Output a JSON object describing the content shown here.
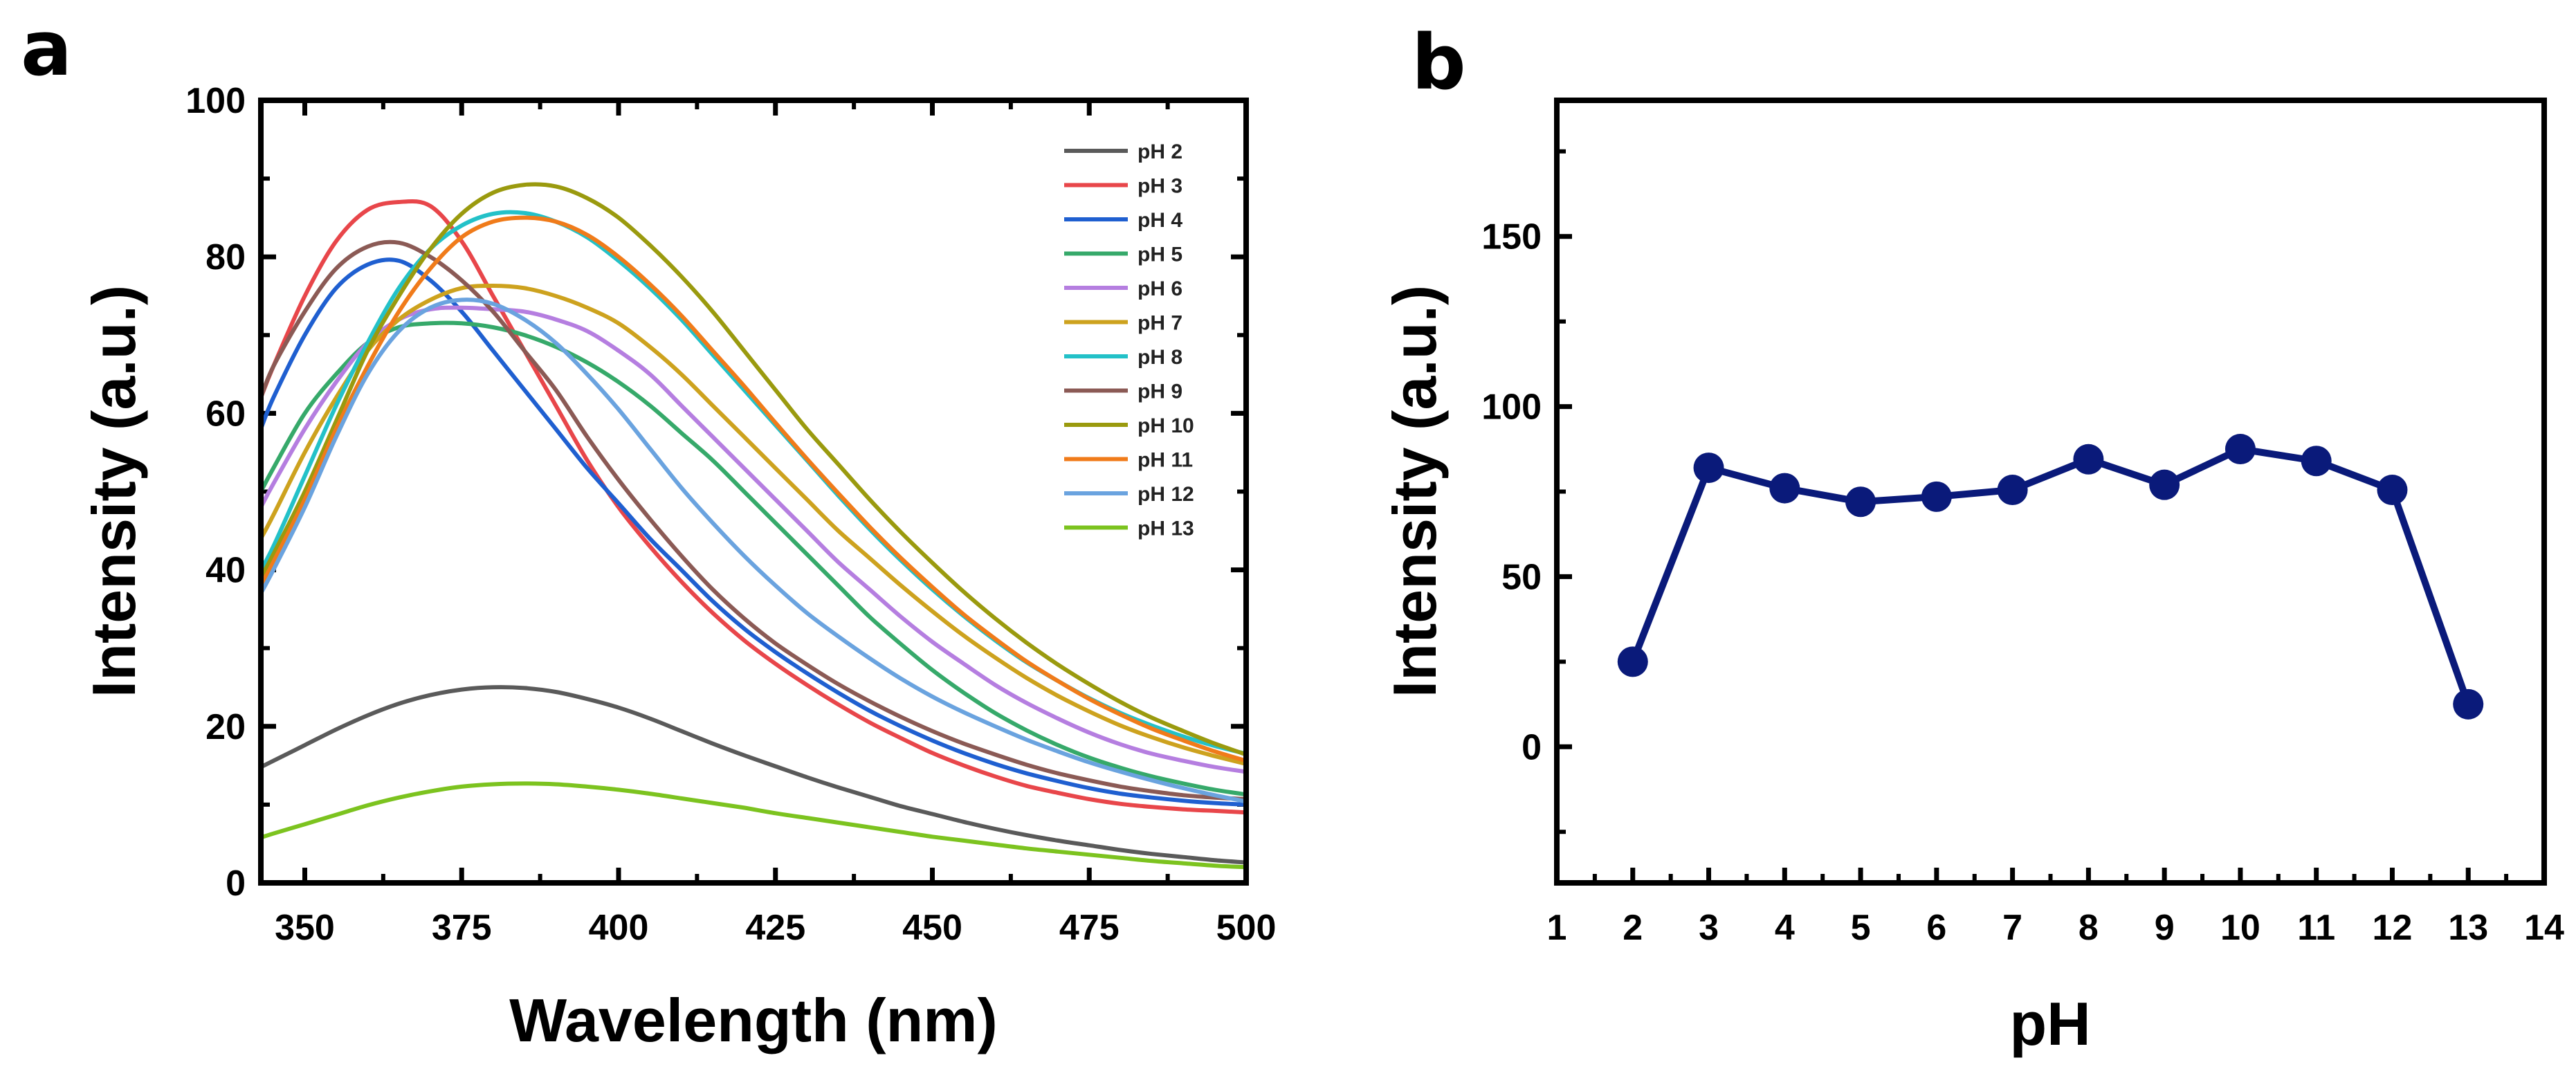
{
  "panels": {
    "a": "a",
    "b": "b"
  },
  "colors": {
    "axis": "#000000",
    "marker": "#0a1a7a"
  },
  "chart_data": [
    {
      "panel": "a",
      "type": "line",
      "xlabel": "Wavelength (nm)",
      "ylabel": "Intensity (a.u.)",
      "xlim": [
        343,
        500
      ],
      "ylim": [
        0,
        100
      ],
      "xticks": [
        350,
        375,
        400,
        425,
        450,
        475,
        500
      ],
      "yticks": [
        0,
        20,
        40,
        60,
        80,
        100
      ],
      "legend_position": "top-right",
      "x": [
        343,
        345,
        350,
        355,
        360,
        365,
        370,
        375,
        380,
        385,
        390,
        395,
        400,
        405,
        410,
        415,
        420,
        425,
        430,
        435,
        440,
        445,
        450,
        455,
        460,
        465,
        470,
        475,
        480,
        485,
        490,
        495,
        500
      ],
      "series": [
        {
          "name": "pH 2",
          "color": "#5a5a5a",
          "values": [
            14.8,
            15.6,
            17.6,
            19.6,
            21.4,
            22.9,
            24.0,
            24.7,
            25.0,
            24.9,
            24.4,
            23.5,
            22.4,
            21.0,
            19.4,
            17.8,
            16.3,
            14.9,
            13.5,
            12.2,
            11.0,
            9.8,
            8.8,
            7.8,
            6.9,
            6.1,
            5.4,
            4.8,
            4.2,
            3.7,
            3.3,
            2.9,
            2.6
          ]
        },
        {
          "name": "pH 3",
          "color": "#e8464a",
          "values": [
            62,
            66,
            75,
            82,
            86,
            87,
            86.5,
            82,
            75,
            68,
            61,
            54,
            48,
            43,
            38.5,
            34.5,
            31,
            28,
            25.3,
            22.8,
            20.5,
            18.5,
            16.6,
            15.0,
            13.6,
            12.4,
            11.5,
            10.7,
            10.1,
            9.7,
            9.4,
            9.2,
            9.0
          ]
        },
        {
          "name": "pH 4",
          "color": "#1f5fd0",
          "values": [
            58,
            62,
            70,
            76,
            79,
            79.5,
            77,
            73,
            68,
            63,
            58,
            53,
            48.5,
            44,
            40,
            36,
            32.5,
            29.5,
            26.8,
            24.3,
            22,
            20,
            18.2,
            16.6,
            15.2,
            14.0,
            13.0,
            12.1,
            11.4,
            10.9,
            10.5,
            10.2,
            10.0
          ]
        },
        {
          "name": "pH 5",
          "color": "#36a96a",
          "values": [
            50,
            53,
            60,
            65,
            69,
            71,
            71.5,
            71.5,
            71,
            70,
            68.5,
            66.5,
            64,
            61,
            57.5,
            54,
            50,
            46,
            42,
            38,
            34,
            30.5,
            27.2,
            24.3,
            21.7,
            19.5,
            17.6,
            16.0,
            14.7,
            13.6,
            12.7,
            11.9,
            11.3
          ]
        },
        {
          "name": "pH 6",
          "color": "#b57ee0",
          "values": [
            48,
            51,
            58,
            64,
            69,
            72,
            73.3,
            73.5,
            73.3,
            73,
            72,
            70.5,
            68,
            65,
            61,
            57,
            53,
            49,
            45,
            41,
            37.5,
            34,
            30.8,
            28,
            25.3,
            23,
            21,
            19.2,
            17.7,
            16.5,
            15.6,
            14.8,
            14.2
          ]
        },
        {
          "name": "pH 7",
          "color": "#cda21e",
          "values": [
            44,
            47,
            55,
            62,
            68,
            72,
            74.5,
            76,
            76.3,
            76,
            75,
            73.5,
            71.5,
            68.5,
            65,
            61,
            57,
            53,
            49,
            45,
            41.5,
            38,
            34.7,
            31.6,
            28.8,
            26.2,
            23.9,
            21.9,
            20.1,
            18.6,
            17.3,
            16.2,
            15.2
          ]
        },
        {
          "name": "pH 8",
          "color": "#23c1c8",
          "values": [
            40,
            43,
            52,
            61,
            69,
            76,
            81,
            84,
            85.5,
            85.6,
            84.5,
            82.5,
            79.5,
            76,
            72,
            67.5,
            63,
            58.5,
            54,
            49.5,
            45.2,
            41.2,
            37.5,
            34.1,
            31,
            28.2,
            25.8,
            23.6,
            21.7,
            20.1,
            18.7,
            17.5,
            16.5
          ]
        },
        {
          "name": "pH 9",
          "color": "#8b5a55",
          "values": [
            62,
            66,
            73,
            78.5,
            81.3,
            81.8,
            80,
            77,
            73,
            68,
            63,
            57,
            51.5,
            46.5,
            41.8,
            37.5,
            33.8,
            30.6,
            27.9,
            25.4,
            23.2,
            21.2,
            19.4,
            17.8,
            16.4,
            15.1,
            14,
            13.1,
            12.3,
            11.7,
            11.2,
            10.9,
            10.7
          ]
        },
        {
          "name": "pH 10",
          "color": "#9a9a0e",
          "values": [
            39,
            42,
            50,
            59,
            68,
            75,
            81,
            85.5,
            88.2,
            89.2,
            89,
            87.5,
            85,
            81.5,
            77.5,
            73,
            68,
            63,
            58,
            53.5,
            49,
            44.8,
            40.9,
            37.2,
            33.8,
            30.7,
            27.9,
            25.4,
            23.1,
            21.1,
            19.4,
            17.8,
            16.4
          ]
        },
        {
          "name": "pH 11",
          "color": "#f07b1a",
          "values": [
            38,
            41,
            49,
            58,
            66,
            73,
            78.5,
            82.5,
            84.5,
            85,
            84.5,
            82.8,
            80,
            76.5,
            72.5,
            68,
            63.5,
            58.8,
            54.2,
            49.8,
            45.5,
            41.5,
            37.8,
            34.3,
            31.2,
            28.3,
            25.8,
            23.5,
            21.5,
            19.7,
            18.2,
            16.8,
            15.6
          ]
        },
        {
          "name": "pH 12",
          "color": "#6aa3df",
          "values": [
            37,
            40,
            48,
            57,
            65,
            70.5,
            73.5,
            74.5,
            74,
            72,
            69,
            65,
            60.5,
            55.5,
            50.5,
            46,
            41.8,
            38,
            34.5,
            31.5,
            28.7,
            26.1,
            23.8,
            21.8,
            20,
            18.3,
            16.8,
            15.4,
            14.2,
            13.1,
            12.1,
            11.2,
            10.4
          ]
        },
        {
          "name": "pH 13",
          "color": "#7cc31f",
          "values": [
            5.8,
            6.3,
            7.5,
            8.7,
            9.9,
            10.9,
            11.7,
            12.3,
            12.6,
            12.7,
            12.6,
            12.3,
            11.9,
            11.4,
            10.8,
            10.2,
            9.6,
            8.9,
            8.3,
            7.7,
            7.1,
            6.5,
            5.9,
            5.4,
            4.9,
            4.4,
            4.0,
            3.6,
            3.2,
            2.8,
            2.5,
            2.2,
            2.0
          ]
        }
      ]
    },
    {
      "panel": "b",
      "type": "line",
      "markers": true,
      "xlabel": "pH",
      "ylabel": "Intensity (a.u.)",
      "xlim": [
        1,
        14
      ],
      "ylim": [
        -40,
        190
      ],
      "xticks": [
        1,
        2,
        3,
        4,
        5,
        6,
        7,
        8,
        9,
        10,
        11,
        12,
        13,
        14
      ],
      "yticks": [
        0,
        50,
        100,
        150
      ],
      "x": [
        2,
        3,
        4,
        5,
        6,
        7,
        8,
        9,
        10,
        11,
        12,
        13
      ],
      "values": [
        25,
        82,
        76,
        72,
        73.5,
        75.5,
        84.5,
        77,
        87.5,
        84,
        75.5,
        12.5
      ]
    }
  ]
}
